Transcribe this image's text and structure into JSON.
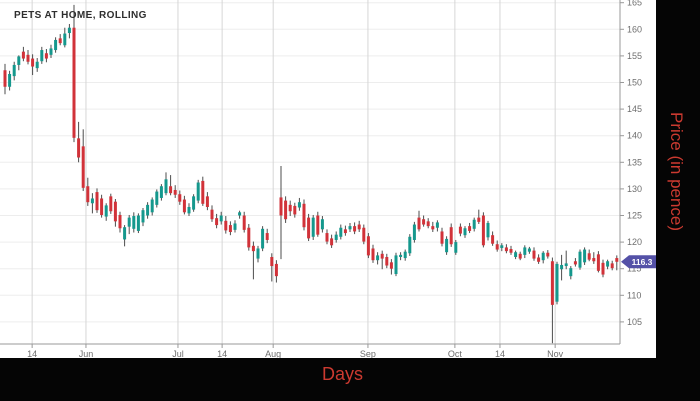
{
  "window": {
    "title": "PETS AT HOME, ROLLING"
  },
  "chart": {
    "title": "PETS AT HOME, ROLLING",
    "x_axis_label": "Days",
    "y_axis_label": "Price (in pence)",
    "last_price_label": "116.3"
  },
  "chart_data": {
    "type": "candlestick",
    "title": "PETS AT HOME, ROLLING",
    "xlabel": "Days",
    "ylabel": "Price (in pence)",
    "ylim": [
      101,
      165.5
    ],
    "grid": true,
    "y_ticks": [
      105,
      110,
      115,
      120,
      125,
      130,
      135,
      140,
      145,
      150,
      155,
      160,
      165
    ],
    "x_ticks": [
      {
        "label": "14",
        "index": 5.9
      },
      {
        "label": "Jun",
        "index": 17.6
      },
      {
        "label": "Jul",
        "index": 37.6
      },
      {
        "label": "14",
        "index": 47.2
      },
      {
        "label": "Aug",
        "index": 58.3
      },
      {
        "label": "Sep",
        "index": 78.9
      },
      {
        "label": "Oct",
        "index": 97.8
      },
      {
        "label": "14",
        "index": 107.6
      },
      {
        "label": "Nov",
        "index": 119.6
      }
    ],
    "last_price": 116.3,
    "colors": {
      "up": "#15988d",
      "down": "#d13239",
      "wick": "#4d4d4d",
      "badge": "#5451a7",
      "badge_text": "#ffffff",
      "axis_line": "#999999",
      "tick_text": "#6e6e6e",
      "grid_h": "#ededed",
      "grid_v": "#d6d6d6",
      "outer_label": "#cc3a30"
    },
    "candles": [
      [
        152.3,
        153.5,
        147.8,
        149.2
      ],
      [
        149.2,
        152.2,
        148.5,
        151.6
      ],
      [
        151.2,
        153.9,
        150.4,
        153.3
      ],
      [
        153.3,
        155.1,
        152.3,
        154.9
      ],
      [
        155.8,
        156.7,
        154.0,
        154.5
      ],
      [
        155.2,
        156.1,
        153.4,
        153.9
      ],
      [
        154.5,
        155.3,
        151.4,
        153.0
      ],
      [
        152.7,
        154.6,
        152.0,
        153.9
      ],
      [
        154.0,
        156.7,
        153.5,
        156.1
      ],
      [
        155.5,
        156.3,
        153.8,
        154.5
      ],
      [
        155.2,
        157.1,
        154.6,
        156.4
      ],
      [
        156.1,
        158.5,
        155.6,
        158.0
      ],
      [
        158.3,
        159.1,
        157.0,
        157.4
      ],
      [
        157.0,
        160.3,
        156.6,
        159.2
      ],
      [
        159.3,
        161.0,
        158.3,
        160.3
      ],
      [
        160.3,
        164.6,
        138.8,
        139.6
      ],
      [
        139.5,
        142.6,
        135.0,
        135.9
      ],
      [
        138.0,
        141.2,
        129.6,
        130.2
      ],
      [
        130.5,
        132.1,
        126.8,
        127.5
      ],
      [
        127.3,
        129.2,
        125.4,
        128.2
      ],
      [
        129.4,
        130.1,
        125.5,
        126.0
      ],
      [
        128.2,
        128.9,
        124.6,
        125.1
      ],
      [
        124.8,
        127.3,
        124.0,
        126.9
      ],
      [
        128.6,
        129.1,
        125.3,
        125.8
      ],
      [
        127.6,
        128.1,
        122.9,
        123.9
      ],
      [
        125.1,
        125.7,
        121.8,
        122.6
      ],
      [
        120.5,
        123.2,
        119.2,
        122.8
      ],
      [
        122.9,
        125.1,
        121.5,
        124.6
      ],
      [
        122.5,
        125.6,
        121.8,
        124.9
      ],
      [
        122.1,
        125.4,
        121.7,
        125.0
      ],
      [
        123.7,
        126.4,
        123.0,
        126.0
      ],
      [
        125.0,
        127.5,
        124.4,
        127.0
      ],
      [
        125.6,
        128.4,
        125.0,
        128.0
      ],
      [
        127.0,
        129.9,
        126.5,
        129.5
      ],
      [
        128.3,
        130.9,
        127.8,
        130.5
      ],
      [
        129.2,
        133.1,
        128.8,
        131.8
      ],
      [
        130.5,
        132.6,
        128.8,
        129.2
      ],
      [
        129.8,
        130.7,
        128.3,
        128.9
      ],
      [
        129.0,
        129.7,
        127.0,
        127.6
      ],
      [
        128.0,
        128.7,
        125.2,
        125.6
      ],
      [
        125.4,
        127.3,
        124.9,
        126.6
      ],
      [
        126.1,
        129.0,
        125.7,
        128.6
      ],
      [
        127.8,
        131.7,
        127.3,
        131.2
      ],
      [
        131.5,
        132.3,
        126.8,
        127.2
      ],
      [
        128.6,
        129.4,
        126.0,
        126.6
      ],
      [
        126.1,
        126.9,
        123.8,
        124.3
      ],
      [
        124.5,
        125.3,
        122.6,
        123.2
      ],
      [
        123.9,
        125.7,
        123.3,
        125.0
      ],
      [
        124.0,
        124.9,
        121.6,
        122.2
      ],
      [
        123.2,
        123.9,
        121.3,
        121.9
      ],
      [
        122.3,
        124.1,
        121.8,
        123.5
      ],
      [
        125.0,
        125.9,
        124.4,
        125.6
      ],
      [
        125.0,
        125.7,
        121.8,
        122.3
      ],
      [
        122.7,
        123.4,
        118.4,
        119.0
      ],
      [
        119.3,
        120.1,
        113.0,
        118.3
      ],
      [
        116.9,
        119.3,
        116.2,
        118.8
      ],
      [
        118.8,
        123.0,
        118.3,
        122.5
      ],
      [
        121.7,
        122.5,
        119.8,
        120.4
      ],
      [
        117.2,
        117.9,
        112.6,
        115.5
      ],
      [
        115.9,
        116.6,
        112.4,
        113.6
      ],
      [
        128.4,
        134.3,
        116.8,
        125.0
      ],
      [
        127.8,
        128.6,
        123.6,
        124.3
      ],
      [
        127.0,
        127.8,
        124.9,
        125.8
      ],
      [
        126.8,
        127.4,
        124.6,
        125.2
      ],
      [
        126.5,
        128.3,
        125.9,
        127.5
      ],
      [
        127.2,
        128.0,
        122.2,
        122.8
      ],
      [
        124.6,
        125.3,
        120.2,
        120.7
      ],
      [
        121.0,
        125.1,
        120.4,
        124.6
      ],
      [
        125.0,
        125.7,
        121.0,
        121.4
      ],
      [
        122.4,
        124.9,
        121.8,
        124.3
      ],
      [
        121.7,
        122.4,
        119.6,
        120.1
      ],
      [
        120.7,
        121.4,
        118.9,
        119.4
      ],
      [
        120.4,
        122.0,
        119.9,
        121.4
      ],
      [
        121.0,
        123.3,
        120.5,
        122.7
      ],
      [
        122.4,
        123.1,
        121.2,
        121.7
      ],
      [
        122.4,
        123.6,
        121.9,
        123.0
      ],
      [
        123.0,
        123.7,
        121.5,
        122.0
      ],
      [
        123.3,
        124.0,
        121.9,
        122.4
      ],
      [
        122.7,
        123.3,
        119.6,
        120.1
      ],
      [
        121.1,
        121.7,
        117.0,
        117.5
      ],
      [
        118.8,
        119.5,
        116.1,
        116.6
      ],
      [
        116.6,
        118.1,
        115.8,
        117.5
      ],
      [
        117.8,
        118.4,
        114.9,
        116.9
      ],
      [
        117.2,
        117.8,
        115.1,
        115.6
      ],
      [
        116.2,
        116.8,
        113.9,
        115.0
      ],
      [
        114.0,
        118.0,
        113.6,
        117.5
      ],
      [
        117.2,
        118.1,
        116.6,
        117.6
      ],
      [
        117.0,
        118.6,
        116.5,
        118.2
      ],
      [
        117.9,
        121.5,
        117.4,
        121.0
      ],
      [
        120.4,
        123.8,
        119.9,
        123.3
      ],
      [
        124.6,
        125.9,
        122.0,
        122.4
      ],
      [
        124.3,
        125.0,
        122.9,
        123.3
      ],
      [
        123.9,
        124.5,
        122.6,
        123.0
      ],
      [
        123.0,
        123.8,
        121.9,
        122.4
      ],
      [
        122.7,
        124.1,
        122.0,
        123.7
      ],
      [
        122.0,
        122.7,
        119.2,
        119.7
      ],
      [
        118.1,
        121.1,
        117.6,
        120.6
      ],
      [
        122.8,
        123.5,
        119.1,
        119.6
      ],
      [
        118.0,
        120.4,
        117.6,
        120.0
      ],
      [
        122.9,
        123.5,
        121.1,
        121.6
      ],
      [
        121.3,
        123.0,
        120.8,
        122.6
      ],
      [
        123.0,
        123.6,
        121.7,
        122.1
      ],
      [
        122.5,
        124.6,
        122.0,
        124.2
      ],
      [
        124.6,
        126.1,
        123.4,
        123.8
      ],
      [
        125.0,
        125.6,
        119.0,
        119.4
      ],
      [
        120.9,
        124.0,
        120.3,
        123.6
      ],
      [
        121.3,
        122.0,
        119.3,
        119.7
      ],
      [
        119.6,
        120.3,
        118.2,
        118.6
      ],
      [
        118.9,
        119.8,
        118.3,
        119.4
      ],
      [
        119.0,
        119.6,
        117.9,
        118.3
      ],
      [
        118.7,
        119.3,
        117.6,
        118.0
      ],
      [
        117.2,
        118.4,
        116.8,
        118.1
      ],
      [
        117.8,
        118.2,
        116.6,
        116.9
      ],
      [
        117.6,
        119.4,
        117.0,
        119.0
      ],
      [
        118.2,
        119.1,
        117.8,
        118.8
      ],
      [
        118.4,
        119.0,
        116.5,
        116.9
      ],
      [
        117.1,
        117.7,
        115.9,
        116.3
      ],
      [
        116.6,
        118.3,
        116.0,
        118.0
      ],
      [
        118.0,
        118.5,
        116.9,
        117.3
      ],
      [
        116.4,
        117.1,
        101.0,
        108.2
      ],
      [
        108.8,
        116.3,
        108.3,
        115.9
      ],
      [
        114.9,
        117.6,
        112.8,
        115.7
      ],
      [
        115.5,
        118.4,
        114.9,
        116.0
      ],
      [
        113.6,
        115.5,
        113.0,
        115.1
      ],
      [
        116.4,
        117.0,
        115.4,
        115.8
      ],
      [
        115.2,
        118.6,
        114.8,
        118.2
      ],
      [
        116.2,
        119.0,
        115.7,
        118.6
      ],
      [
        117.9,
        118.6,
        116.4,
        116.7
      ],
      [
        117.0,
        118.1,
        115.9,
        116.4
      ],
      [
        117.7,
        118.3,
        114.3,
        114.6
      ],
      [
        116.1,
        116.7,
        113.4,
        113.9
      ],
      [
        115.4,
        116.7,
        114.9,
        116.4
      ],
      [
        116.0,
        116.5,
        114.7,
        115.1
      ],
      [
        117.0,
        117.5,
        114.7,
        116.3
      ]
    ]
  }
}
